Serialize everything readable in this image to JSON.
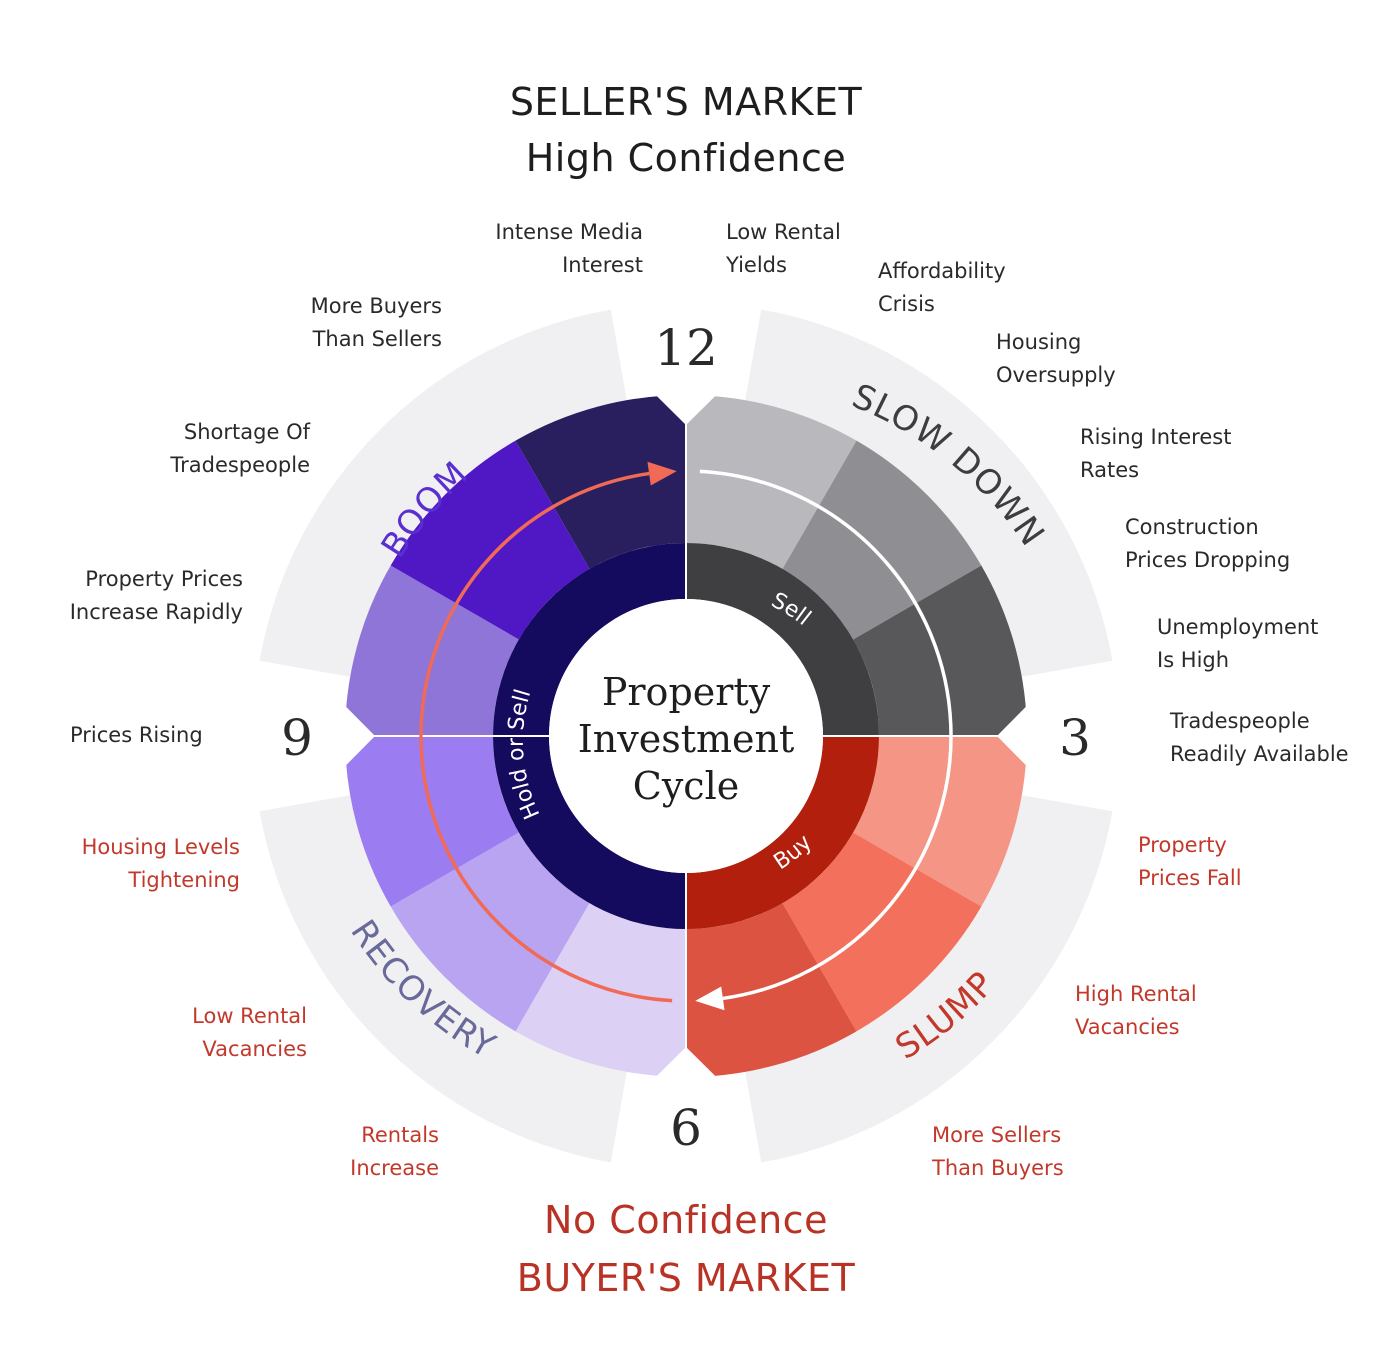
{
  "header": {
    "line1": "SELLER'S MARKET",
    "line2": "High Confidence"
  },
  "footer": {
    "line1": "No Confidence",
    "line2": "BUYER'S MARKET"
  },
  "center": {
    "line1": "Property",
    "line2": "Investment",
    "line3": "Cycle"
  },
  "clock_numbers": {
    "n12": "12",
    "n3": "3",
    "n6": "6",
    "n9": "9"
  },
  "phases": [
    {
      "name": "BOOM",
      "color": "#5a2fd0"
    },
    {
      "name": "SLOW DOWN",
      "color": "#3d3d3f"
    },
    {
      "name": "SLUMP",
      "color": "#c2392b"
    },
    {
      "name": "RECOVERY",
      "color": "#6a6a9a"
    }
  ],
  "actions": [
    {
      "label": "Sell",
      "color": "#3f3f41"
    },
    {
      "label": "Buy",
      "color": "#b31f0d"
    },
    {
      "label": "Hold or Sell",
      "color": "#140a5e"
    }
  ],
  "segment_colors": {
    "boom": [
      "#8f75d8",
      "#4f18c4",
      "#2a1f5e"
    ],
    "slowdown": [
      "#b9b9bd",
      "#8f8f93",
      "#58585b"
    ],
    "slump": [
      "#f59585",
      "#f2705c",
      "#dc5341"
    ],
    "recovery": [
      "#dcd0f5",
      "#b8a4f1",
      "#9c7cf1"
    ],
    "grey_band": "#f0f0f2",
    "arrow_orange": "#f06a55",
    "arrow_white": "#ffffff"
  },
  "labels": {
    "intense_media": "Intense Media\nInterest",
    "low_rental_yields": "Low Rental\nYields",
    "affordability": "Affordability\nCrisis",
    "oversupply": "Housing\nOversupply",
    "rising_rates": "Rising Interest\nRates",
    "construction": "Construction\nPrices Dropping",
    "unemployment": "Unemployment\nIs High",
    "tradespeople_available": "Tradespeople\nReadily Available",
    "prices_fall": "Property\nPrices Fall",
    "high_vacancies": "High Rental\nVacancies",
    "more_sellers": "More Sellers\nThan Buyers",
    "rentals_increase": "Rentals\nIncrease",
    "low_vacancies": "Low Rental\nVacancies",
    "housing_tightening": "Housing Levels\nTightening",
    "prices_rising": "Prices Rising",
    "prices_increase_rapidly": "Property Prices\nIncrease Rapidly",
    "shortage_trades": "Shortage Of\nTradespeople",
    "more_buyers": "More Buyers\nThan Sellers"
  }
}
